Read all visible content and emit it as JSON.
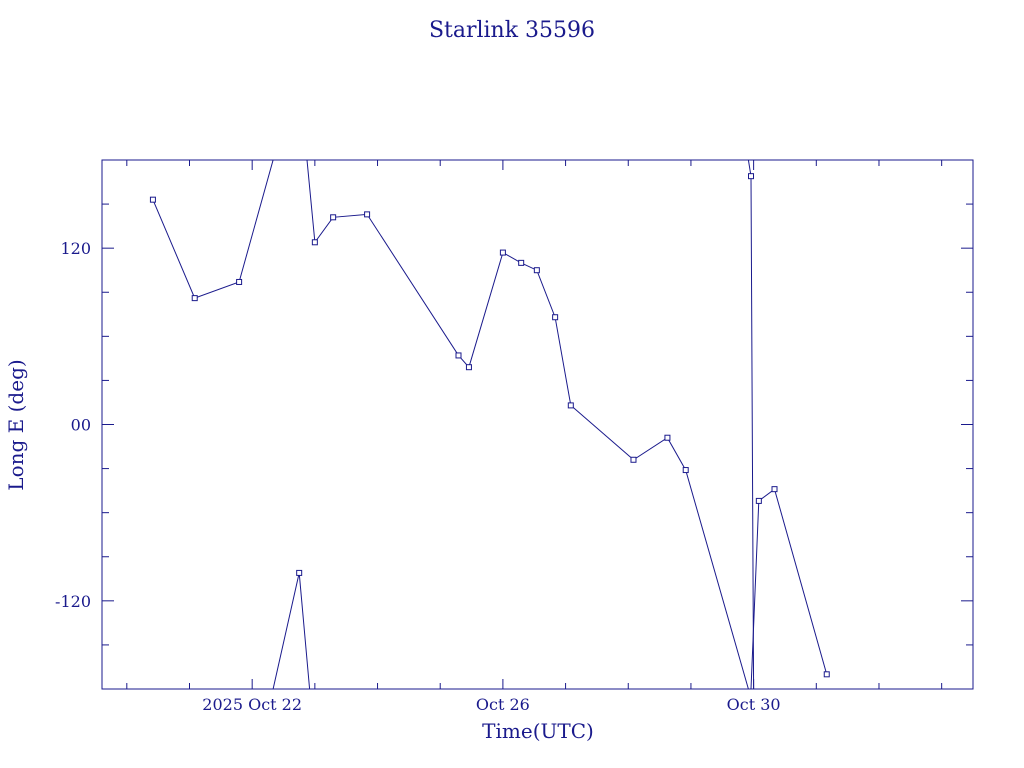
{
  "chart_data": {
    "type": "line",
    "title": "Starlink 35596",
    "xlabel": "Time(UTC)",
    "ylabel": "Long E (deg)",
    "xlim": [
      "2025-10-19T14:30",
      "2025-11-02T12:00"
    ],
    "ylim": [
      -180,
      180
    ],
    "x_tick_labels": [
      {
        "x": "2025-10-22T00:00",
        "label": "2025 Oct 22"
      },
      {
        "x": "2025-10-26T00:00",
        "label": "Oct 26"
      },
      {
        "x": "2025-10-30T00:00",
        "label": "Oct 30"
      }
    ],
    "y_tick_labels": [
      {
        "y": 120,
        "label": "120"
      },
      {
        "y": 0,
        "label": "00"
      },
      {
        "y": -120,
        "label": "-120"
      }
    ],
    "grid": false,
    "color": "#1a1a8c",
    "series": [
      {
        "points": [
          {
            "x": "2025-10-20T10:00",
            "y": 153
          },
          {
            "x": "2025-10-21T02:00",
            "y": 86
          },
          {
            "x": "2025-10-21T19:00",
            "y": 97
          },
          {
            "x": "2025-10-22T08:00",
            "y": 180,
            "edge": true
          }
        ]
      },
      {
        "points": [
          {
            "x": "2025-10-22T08:00",
            "y": -180,
            "edge": true
          },
          {
            "x": "2025-10-22T18:00",
            "y": -101
          },
          {
            "x": "2025-10-22T22:00",
            "y": -180,
            "edge": true
          }
        ]
      },
      {
        "points": [
          {
            "x": "2025-10-22T21:00",
            "y": 180,
            "edge": true
          },
          {
            "x": "2025-10-23T00:00",
            "y": 124
          },
          {
            "x": "2025-10-23T07:00",
            "y": 141
          },
          {
            "x": "2025-10-23T20:00",
            "y": 143
          },
          {
            "x": "2025-10-25T07:00",
            "y": 47
          },
          {
            "x": "2025-10-25T11:00",
            "y": 39
          },
          {
            "x": "2025-10-26T00:00",
            "y": 117
          },
          {
            "x": "2025-10-26T07:00",
            "y": 110
          },
          {
            "x": "2025-10-26T13:00",
            "y": 105
          },
          {
            "x": "2025-10-26T20:00",
            "y": 73
          },
          {
            "x": "2025-10-27T02:00",
            "y": 13
          },
          {
            "x": "2025-10-28T02:00",
            "y": -24
          },
          {
            "x": "2025-10-28T15:00",
            "y": -9
          },
          {
            "x": "2025-10-28T22:00",
            "y": -31
          },
          {
            "x": "2025-10-29T22:00",
            "y": -180,
            "edge": true
          }
        ]
      },
      {
        "points": [
          {
            "x": "2025-10-29T22:00",
            "y": 180,
            "edge": true
          },
          {
            "x": "2025-10-29T23:00",
            "y": 169
          },
          {
            "x": "2025-10-30T00:00",
            "y": -180,
            "edge": true
          }
        ]
      },
      {
        "points": [
          {
            "x": "2025-10-29T23:00",
            "y": -180,
            "edge": true
          },
          {
            "x": "2025-10-30T02:00",
            "y": -52
          },
          {
            "x": "2025-10-30T08:00",
            "y": -44
          },
          {
            "x": "2025-10-31T04:00",
            "y": -170
          }
        ]
      }
    ]
  }
}
